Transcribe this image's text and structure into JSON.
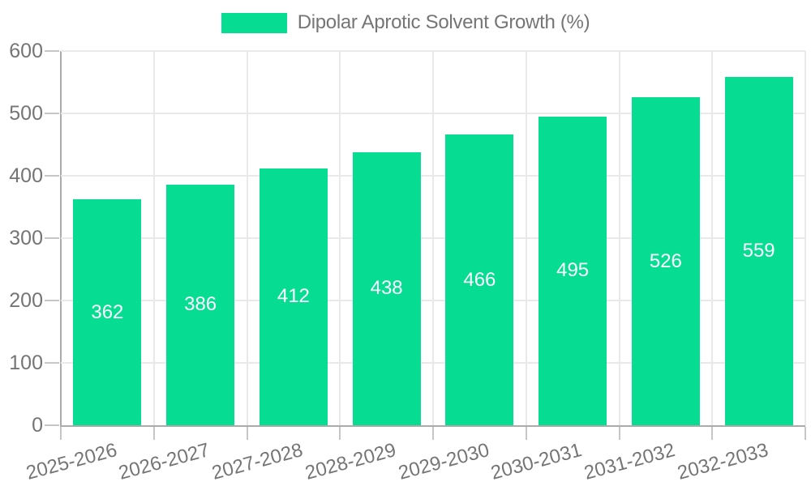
{
  "colors": {
    "bar": "#06DD92",
    "grid": "#E9E9E9",
    "axis": "#ABABAB",
    "tick": "#C6C6C6",
    "text": "#757575",
    "bar_label": "#FFFFFF",
    "background": "#FFFFFF"
  },
  "legend": {
    "label": "Dipolar Aprotic Solvent Growth (%)",
    "swatch_color": "#06DD92",
    "position": "top-center"
  },
  "chart_data": {
    "type": "bar",
    "title": "Dipolar Aprotic Solvent Growth (%)",
    "categories": [
      "2025-2026",
      "2026-2027",
      "2027-2028",
      "2028-2029",
      "2029-2030",
      "2030-2031",
      "2031-2032",
      "2032-2033"
    ],
    "values": [
      362,
      386,
      412,
      438,
      466,
      495,
      526,
      559
    ],
    "xlabel": "",
    "ylabel": "",
    "ylim": [
      0,
      600
    ],
    "yticks": [
      0,
      100,
      200,
      300,
      400,
      500,
      600
    ],
    "grid": true,
    "legend_position": "top",
    "bar_label_position": "center-inside",
    "x_label_rotation_deg": -15
  }
}
